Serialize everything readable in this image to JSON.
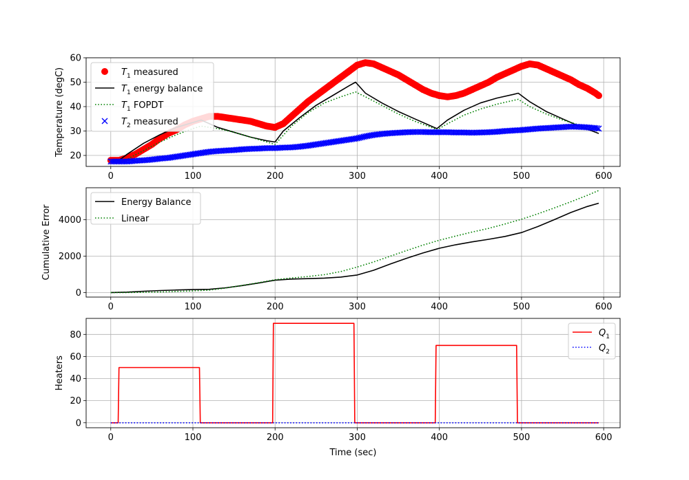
{
  "chart_data": [
    {
      "type": "line",
      "ylabel": "Temperature (degC)",
      "xlabel": "",
      "xlim": [
        -30,
        620
      ],
      "ylim": [
        15.5,
        60
      ],
      "xticks": [
        0,
        100,
        200,
        300,
        400,
        500,
        600
      ],
      "yticks": [
        20,
        30,
        40,
        50,
        60
      ],
      "grid": true,
      "legend_position": "top-left",
      "series": [
        {
          "name": "$T_1$ measured",
          "label_main": "T",
          "label_sub": "1",
          "label_rest": " measured",
          "style": "marker-circle",
          "color": "#ff0000",
          "x": [
            0,
            10,
            20,
            30,
            40,
            50,
            60,
            70,
            80,
            90,
            100,
            110,
            120,
            130,
            140,
            150,
            160,
            170,
            180,
            190,
            200,
            210,
            220,
            230,
            240,
            250,
            260,
            270,
            280,
            290,
            300,
            310,
            320,
            330,
            340,
            350,
            360,
            370,
            380,
            390,
            400,
            410,
            420,
            430,
            440,
            450,
            460,
            470,
            480,
            490,
            500,
            510,
            520,
            530,
            540,
            550,
            560,
            570,
            580,
            590,
            594
          ],
          "y": [
            18,
            18,
            19,
            20.5,
            22.5,
            24.5,
            27,
            29,
            30.5,
            32.5,
            34,
            35,
            36,
            36,
            35.5,
            35,
            34.5,
            34,
            33,
            32,
            31.5,
            33,
            36,
            39,
            42,
            44.5,
            47,
            49.5,
            52,
            54.5,
            57,
            58,
            57.5,
            56,
            54.5,
            53,
            51,
            49,
            47,
            45.5,
            44.5,
            44,
            44.5,
            45.5,
            47,
            48.5,
            50,
            52,
            53.5,
            55,
            56.5,
            57.5,
            57,
            55.5,
            54,
            52.5,
            51,
            49,
            47.5,
            45.5,
            44.5
          ]
        },
        {
          "name": "$T_1$ energy balance",
          "label_main": "T",
          "label_sub": "1",
          "label_rest": " energy balance",
          "style": "solid",
          "color": "#000000",
          "x": [
            0,
            10,
            20,
            40,
            60,
            80,
            100,
            110,
            130,
            150,
            170,
            190,
            200,
            210,
            230,
            250,
            270,
            290,
            298,
            310,
            330,
            350,
            370,
            390,
            397,
            410,
            430,
            450,
            470,
            490,
            496,
            510,
            530,
            550,
            570,
            590,
            594
          ],
          "y": [
            17.5,
            18,
            20.5,
            25,
            28.5,
            31.5,
            33.5,
            34.5,
            31.5,
            29.5,
            27.5,
            26,
            25.5,
            30,
            35.5,
            40.5,
            44.5,
            48.5,
            50,
            45.5,
            41.5,
            38,
            35,
            32,
            31,
            34.5,
            38.5,
            41.5,
            43.5,
            45,
            45.5,
            42,
            38,
            35,
            32,
            29.5,
            29
          ]
        },
        {
          "name": "$T_1$ FOPDT",
          "label_main": "T",
          "label_sub": "1",
          "label_rest": " FOPDT",
          "style": "dotted",
          "color": "#008000",
          "x": [
            0,
            10,
            20,
            40,
            60,
            80,
            100,
            110,
            130,
            150,
            170,
            190,
            200,
            220,
            240,
            260,
            280,
            298,
            310,
            330,
            350,
            370,
            390,
            397,
            410,
            430,
            450,
            470,
            490,
            496,
            510,
            530,
            550,
            570,
            590,
            594
          ],
          "y": [
            17.5,
            17.5,
            18.5,
            22,
            25.5,
            28.5,
            31,
            32,
            31,
            29.5,
            27.5,
            25.5,
            24.5,
            32,
            37.5,
            41.5,
            44,
            46,
            44,
            40.5,
            37,
            34,
            31.5,
            30.5,
            33,
            36.5,
            39,
            41,
            42.5,
            43,
            40,
            37,
            34.5,
            32.5,
            31,
            30.5
          ]
        },
        {
          "name": "$T_2$ measured",
          "label_main": "T",
          "label_sub": "2",
          "label_rest": " measured",
          "style": "marker-x",
          "color": "#0000ff",
          "x": [
            0,
            10,
            20,
            30,
            40,
            50,
            60,
            70,
            80,
            90,
            100,
            110,
            120,
            130,
            140,
            150,
            160,
            170,
            180,
            190,
            200,
            210,
            220,
            230,
            240,
            250,
            260,
            270,
            280,
            290,
            300,
            310,
            320,
            330,
            340,
            350,
            360,
            370,
            380,
            390,
            400,
            410,
            420,
            430,
            440,
            450,
            460,
            470,
            480,
            490,
            500,
            510,
            520,
            530,
            540,
            550,
            560,
            570,
            580,
            590,
            594
          ],
          "y": [
            17.5,
            17.5,
            17.5,
            17.8,
            18,
            18.3,
            18.7,
            19,
            19.5,
            20,
            20.5,
            21,
            21.5,
            21.8,
            22,
            22.2,
            22.5,
            22.7,
            22.8,
            23,
            23,
            23.2,
            23.3,
            23.6,
            24,
            24.5,
            25,
            25.5,
            26,
            26.5,
            27,
            27.8,
            28.4,
            28.8,
            29.1,
            29.3,
            29.5,
            29.6,
            29.6,
            29.5,
            29.5,
            29.5,
            29.4,
            29.4,
            29.3,
            29.4,
            29.5,
            29.7,
            30,
            30.2,
            30.4,
            30.7,
            31,
            31.2,
            31.4,
            31.6,
            31.8,
            31.7,
            31.5,
            31.2,
            31
          ]
        }
      ]
    },
    {
      "type": "line",
      "ylabel": "Cumulative Error",
      "xlabel": "",
      "xlim": [
        -30,
        620
      ],
      "ylim": [
        -250,
        5750
      ],
      "xticks": [
        0,
        100,
        200,
        300,
        400,
        500,
        600
      ],
      "yticks": [
        0,
        2000,
        4000
      ],
      "grid": true,
      "legend_position": "top-left",
      "series": [
        {
          "name": "Energy Balance",
          "label_main": "Energy Balance",
          "label_sub": "",
          "label_rest": "",
          "style": "solid",
          "color": "#000000",
          "x": [
            0,
            20,
            40,
            60,
            80,
            100,
            120,
            140,
            160,
            180,
            200,
            220,
            240,
            260,
            280,
            300,
            320,
            340,
            360,
            380,
            400,
            420,
            440,
            460,
            480,
            500,
            520,
            540,
            560,
            580,
            594
          ],
          "y": [
            0,
            20,
            70,
            110,
            140,
            160,
            175,
            260,
            380,
            520,
            680,
            740,
            760,
            790,
            850,
            960,
            1220,
            1560,
            1880,
            2170,
            2430,
            2620,
            2780,
            2920,
            3080,
            3290,
            3620,
            4000,
            4390,
            4720,
            4900
          ]
        },
        {
          "name": "Linear",
          "label_main": "Linear",
          "label_sub": "",
          "label_rest": "",
          "style": "dotted",
          "color": "#008000",
          "x": [
            0,
            20,
            40,
            60,
            80,
            100,
            120,
            140,
            160,
            180,
            200,
            220,
            240,
            260,
            280,
            300,
            320,
            340,
            360,
            380,
            400,
            420,
            440,
            460,
            480,
            500,
            520,
            540,
            560,
            580,
            594
          ],
          "y": [
            0,
            0,
            10,
            30,
            60,
            90,
            130,
            250,
            390,
            540,
            700,
            800,
            880,
            980,
            1150,
            1400,
            1680,
            1990,
            2300,
            2600,
            2870,
            3100,
            3320,
            3520,
            3760,
            4020,
            4320,
            4640,
            4980,
            5330,
            5600
          ]
        }
      ]
    },
    {
      "type": "line",
      "ylabel": "Heaters",
      "xlabel": "Time (sec)",
      "xlim": [
        -30,
        620
      ],
      "ylim": [
        -4.5,
        94.5
      ],
      "xticks": [
        0,
        100,
        200,
        300,
        400,
        500,
        600
      ],
      "yticks": [
        0,
        20,
        40,
        60,
        80
      ],
      "grid": true,
      "legend_position": "top-right",
      "series": [
        {
          "name": "$Q_1$",
          "label_main": "Q",
          "label_sub": "1",
          "label_rest": "",
          "style": "solid",
          "color": "#ff0000",
          "x": [
            0,
            9,
            10,
            108,
            109,
            197,
            198,
            296,
            297,
            395,
            396,
            494,
            495,
            594
          ],
          "y": [
            0,
            0,
            50,
            50,
            0,
            0,
            90,
            90,
            0,
            0,
            70,
            70,
            0,
            0
          ]
        },
        {
          "name": "$Q_2$",
          "label_main": "Q",
          "label_sub": "2",
          "label_rest": "",
          "style": "dotted",
          "color": "#0000ff",
          "x": [
            0,
            594
          ],
          "y": [
            0,
            0
          ]
        }
      ]
    }
  ]
}
